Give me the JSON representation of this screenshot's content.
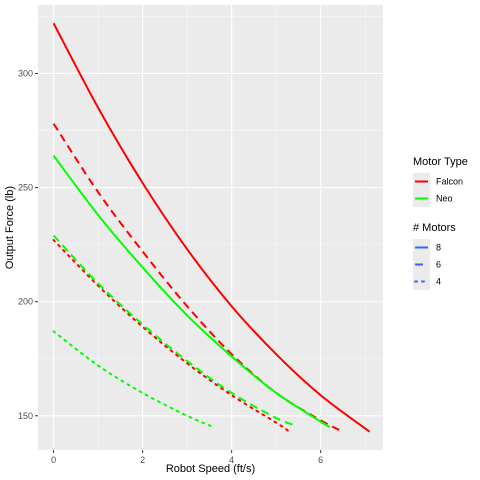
{
  "chart_data": {
    "type": "line",
    "title": "",
    "xlabel": "Robot Speed (ft/s)",
    "ylabel": "Output Force (lb)",
    "xlim": [
      -0.35,
      7.4
    ],
    "ylim": [
      135,
      330
    ],
    "xticks": [
      0,
      2,
      4,
      6
    ],
    "yticks": [
      150,
      200,
      250,
      300
    ],
    "grid": true,
    "legend_placement": "right",
    "legends": [
      {
        "title": "Motor Type",
        "entries": [
          {
            "label": "Falcon",
            "color": "#ff0000"
          },
          {
            "label": "Neo",
            "color": "#00ff00"
          }
        ]
      },
      {
        "title": "# Motors",
        "entries": [
          {
            "label": "8",
            "linestyle": "solid",
            "color": "#3366ff"
          },
          {
            "label": "6",
            "linestyle": "dashed",
            "color": "#3366ff"
          },
          {
            "label": "4",
            "linestyle": "dotted",
            "color": "#3366ff"
          }
        ]
      }
    ],
    "series": [
      {
        "motor": "Falcon",
        "motors": "8",
        "color": "#ff0000",
        "linestyle": "solid",
        "x": [
          0,
          1,
          2,
          3,
          4,
          5,
          6,
          7.1
        ],
        "y": [
          322,
          285,
          252,
          223,
          198,
          177,
          159,
          143
        ]
      },
      {
        "motor": "Falcon",
        "motors": "6",
        "color": "#ff0000",
        "linestyle": "dashed",
        "x": [
          0,
          1,
          2,
          3,
          4,
          5,
          6,
          6.5
        ],
        "y": [
          278,
          248,
          222,
          198,
          177,
          160,
          148,
          143
        ]
      },
      {
        "motor": "Falcon",
        "motors": "4",
        "color": "#ff0000",
        "linestyle": "dotted",
        "x": [
          0,
          1,
          2,
          3,
          4,
          5,
          5.3
        ],
        "y": [
          227,
          207,
          189,
          173,
          159,
          147,
          143
        ]
      },
      {
        "motor": "Neo",
        "motors": "8",
        "color": "#00ff00",
        "linestyle": "solid",
        "x": [
          0,
          1,
          2,
          3,
          4,
          5,
          6.2
        ],
        "y": [
          264,
          238,
          215,
          194,
          176,
          160,
          145
        ]
      },
      {
        "motor": "Neo",
        "motors": "6",
        "color": "#00ff00",
        "linestyle": "dashed",
        "x": [
          0,
          1,
          2,
          3,
          4,
          5,
          5.4
        ],
        "y": [
          229,
          208,
          190,
          174,
          160,
          149,
          146
        ]
      },
      {
        "motor": "Neo",
        "motors": "4",
        "color": "#00ff00",
        "linestyle": "dotted",
        "x": [
          0,
          1,
          2,
          3,
          3.6
        ],
        "y": [
          187,
          172,
          160,
          150,
          145
        ]
      }
    ]
  }
}
